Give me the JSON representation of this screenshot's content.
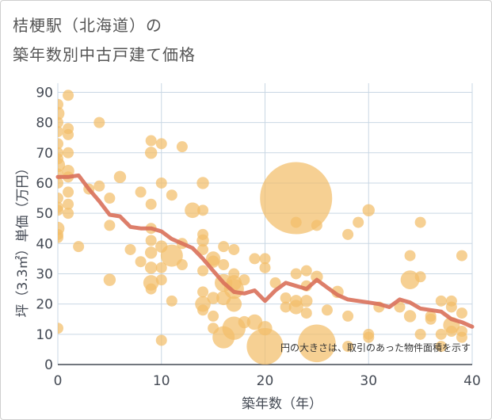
{
  "chart_data": {
    "type": "scatter",
    "title_lines": [
      "桔梗駅（北海道）の",
      "築年数別中古戸建て価格"
    ],
    "xlabel": "築年数（年）",
    "ylabel": "坪（3.3㎡）単価（万円）",
    "xlim": [
      0,
      40
    ],
    "ylim": [
      0,
      93
    ],
    "x_ticks": [
      "0",
      "10",
      "20",
      "30",
      "40"
    ],
    "y_ticks": [
      "0",
      "10",
      "20",
      "30",
      "40",
      "50",
      "60",
      "70",
      "80",
      "90"
    ],
    "grid": true,
    "bubble_color": "#f3be6a",
    "line_color": "#d9705a",
    "note": "円の大きさは、取引のあった物件面積を示す",
    "points": [
      {
        "x": 0,
        "y": 12,
        "s": 1
      },
      {
        "x": 0,
        "y": 42,
        "s": 1
      },
      {
        "x": 0,
        "y": 43,
        "s": 1
      },
      {
        "x": 0,
        "y": 45,
        "s": 1.2
      },
      {
        "x": 0,
        "y": 51,
        "s": 1
      },
      {
        "x": 0,
        "y": 52,
        "s": 1
      },
      {
        "x": 0,
        "y": 55,
        "s": 1
      },
      {
        "x": 0,
        "y": 60,
        "s": 1
      },
      {
        "x": 0,
        "y": 63,
        "s": 1
      },
      {
        "x": 0,
        "y": 66,
        "s": 1.3
      },
      {
        "x": 0,
        "y": 68,
        "s": 1
      },
      {
        "x": 0,
        "y": 70,
        "s": 1
      },
      {
        "x": 0,
        "y": 73,
        "s": 1
      },
      {
        "x": 0,
        "y": 77,
        "s": 1
      },
      {
        "x": 0,
        "y": 80,
        "s": 1
      },
      {
        "x": 0,
        "y": 83,
        "s": 1.2
      },
      {
        "x": 0,
        "y": 86,
        "s": 1
      },
      {
        "x": 1,
        "y": 89,
        "s": 1
      },
      {
        "x": 1,
        "y": 78,
        "s": 1
      },
      {
        "x": 1,
        "y": 76,
        "s": 1
      },
      {
        "x": 1,
        "y": 70,
        "s": 1
      },
      {
        "x": 1,
        "y": 64,
        "s": 1.1
      },
      {
        "x": 1,
        "y": 62,
        "s": 1
      },
      {
        "x": 1,
        "y": 57,
        "s": 1
      },
      {
        "x": 1,
        "y": 53,
        "s": 1
      },
      {
        "x": 1,
        "y": 50,
        "s": 1
      },
      {
        "x": 2,
        "y": 39,
        "s": 1
      },
      {
        "x": 3,
        "y": 58,
        "s": 1
      },
      {
        "x": 4,
        "y": 80,
        "s": 1
      },
      {
        "x": 4,
        "y": 59,
        "s": 1
      },
      {
        "x": 5,
        "y": 55,
        "s": 1
      },
      {
        "x": 5,
        "y": 46,
        "s": 1
      },
      {
        "x": 5,
        "y": 28,
        "s": 1.1
      },
      {
        "x": 6,
        "y": 62,
        "s": 1.1
      },
      {
        "x": 7,
        "y": 38,
        "s": 1
      },
      {
        "x": 8,
        "y": 57,
        "s": 1
      },
      {
        "x": 8,
        "y": 34,
        "s": 1
      },
      {
        "x": 9,
        "y": 74,
        "s": 1
      },
      {
        "x": 9,
        "y": 70,
        "s": 1.1
      },
      {
        "x": 9,
        "y": 53,
        "s": 1
      },
      {
        "x": 9,
        "y": 45,
        "s": 1
      },
      {
        "x": 9,
        "y": 41,
        "s": 1
      },
      {
        "x": 9,
        "y": 37,
        "s": 1.1
      },
      {
        "x": 9,
        "y": 32,
        "s": 1.1
      },
      {
        "x": 9,
        "y": 27,
        "s": 1.4
      },
      {
        "x": 9,
        "y": 25,
        "s": 1
      },
      {
        "x": 10,
        "y": 73,
        "s": 1
      },
      {
        "x": 10,
        "y": 60,
        "s": 1
      },
      {
        "x": 10,
        "y": 39,
        "s": 1.1
      },
      {
        "x": 10,
        "y": 32,
        "s": 1
      },
      {
        "x": 10,
        "y": 28,
        "s": 1
      },
      {
        "x": 10,
        "y": 8,
        "s": 1
      },
      {
        "x": 11,
        "y": 56,
        "s": 1
      },
      {
        "x": 11,
        "y": 36,
        "s": 2
      },
      {
        "x": 11,
        "y": 21,
        "s": 1
      },
      {
        "x": 12,
        "y": 72,
        "s": 1
      },
      {
        "x": 12,
        "y": 40,
        "s": 1
      },
      {
        "x": 12,
        "y": 33,
        "s": 1
      },
      {
        "x": 13,
        "y": 51,
        "s": 1.4
      },
      {
        "x": 14,
        "y": 60,
        "s": 1.1
      },
      {
        "x": 14,
        "y": 51,
        "s": 1
      },
      {
        "x": 14,
        "y": 43,
        "s": 1
      },
      {
        "x": 14,
        "y": 41,
        "s": 1.1
      },
      {
        "x": 14,
        "y": 38,
        "s": 1
      },
      {
        "x": 14,
        "y": 31,
        "s": 1
      },
      {
        "x": 14,
        "y": 24,
        "s": 1
      },
      {
        "x": 14,
        "y": 20,
        "s": 1.4
      },
      {
        "x": 14,
        "y": 18,
        "s": 1
      },
      {
        "x": 15,
        "y": 35,
        "s": 1.3
      },
      {
        "x": 15,
        "y": 34,
        "s": 1.1
      },
      {
        "x": 15,
        "y": 22,
        "s": 1.1
      },
      {
        "x": 15,
        "y": 16,
        "s": 1
      },
      {
        "x": 15,
        "y": 12,
        "s": 1
      },
      {
        "x": 16,
        "y": 39,
        "s": 1
      },
      {
        "x": 16,
        "y": 33,
        "s": 1
      },
      {
        "x": 16,
        "y": 27,
        "s": 1.6
      },
      {
        "x": 16,
        "y": 22,
        "s": 1.3
      },
      {
        "x": 16,
        "y": 9,
        "s": 2
      },
      {
        "x": 17,
        "y": 38,
        "s": 1
      },
      {
        "x": 17,
        "y": 30,
        "s": 1
      },
      {
        "x": 17,
        "y": 27,
        "s": 1.4
      },
      {
        "x": 17,
        "y": 25,
        "s": 1.8
      },
      {
        "x": 17,
        "y": 20,
        "s": 1.4
      },
      {
        "x": 17,
        "y": 12,
        "s": 2.1
      },
      {
        "x": 18,
        "y": 28,
        "s": 1
      },
      {
        "x": 18,
        "y": 14,
        "s": 1.1
      },
      {
        "x": 19,
        "y": 14,
        "s": 1.4
      },
      {
        "x": 19,
        "y": 35,
        "s": 1
      },
      {
        "x": 20,
        "y": 35,
        "s": 1
      },
      {
        "x": 20,
        "y": 32,
        "s": 1
      },
      {
        "x": 20,
        "y": 12,
        "s": 1.3
      },
      {
        "x": 20,
        "y": 6,
        "s": 3.3
      },
      {
        "x": 21,
        "y": 27,
        "s": 1
      },
      {
        "x": 22,
        "y": 22,
        "s": 1
      },
      {
        "x": 22,
        "y": 19,
        "s": 1
      },
      {
        "x": 23,
        "y": 55,
        "s": 6.5
      },
      {
        "x": 23,
        "y": 47,
        "s": 1
      },
      {
        "x": 23,
        "y": 30,
        "s": 1
      },
      {
        "x": 23,
        "y": 21,
        "s": 1.1
      },
      {
        "x": 23,
        "y": 19,
        "s": 1.3
      },
      {
        "x": 24,
        "y": 31,
        "s": 1
      },
      {
        "x": 24,
        "y": 26,
        "s": 1
      },
      {
        "x": 24,
        "y": 21,
        "s": 1.1
      },
      {
        "x": 24,
        "y": 17,
        "s": 1
      },
      {
        "x": 25,
        "y": 46,
        "s": 1
      },
      {
        "x": 25,
        "y": 29,
        "s": 1.1
      },
      {
        "x": 25,
        "y": 7,
        "s": 3.4
      },
      {
        "x": 26,
        "y": 18,
        "s": 1
      },
      {
        "x": 27,
        "y": 24,
        "s": 1.1
      },
      {
        "x": 28,
        "y": 43,
        "s": 1
      },
      {
        "x": 28,
        "y": 16,
        "s": 1
      },
      {
        "x": 28,
        "y": 6,
        "s": 1
      },
      {
        "x": 29,
        "y": 47,
        "s": 1
      },
      {
        "x": 30,
        "y": 51,
        "s": 1.1
      },
      {
        "x": 30,
        "y": 10,
        "s": 1
      },
      {
        "x": 30,
        "y": 9,
        "s": 1
      },
      {
        "x": 31,
        "y": 19,
        "s": 1
      },
      {
        "x": 33,
        "y": 19,
        "s": 1
      },
      {
        "x": 34,
        "y": 36,
        "s": 1
      },
      {
        "x": 34,
        "y": 28,
        "s": 1.7
      },
      {
        "x": 34,
        "y": 16,
        "s": 1.1
      },
      {
        "x": 35,
        "y": 47,
        "s": 1
      },
      {
        "x": 35,
        "y": 29,
        "s": 1
      },
      {
        "x": 35,
        "y": 10,
        "s": 1
      },
      {
        "x": 36,
        "y": 16,
        "s": 1
      },
      {
        "x": 36,
        "y": 15,
        "s": 1
      },
      {
        "x": 37,
        "y": 21,
        "s": 1
      },
      {
        "x": 37,
        "y": 10,
        "s": 1
      },
      {
        "x": 37,
        "y": 6,
        "s": 1
      },
      {
        "x": 38,
        "y": 21,
        "s": 1
      },
      {
        "x": 38,
        "y": 19,
        "s": 1
      },
      {
        "x": 38,
        "y": 13,
        "s": 1.5
      },
      {
        "x": 38,
        "y": 11,
        "s": 1
      },
      {
        "x": 39,
        "y": 36,
        "s": 1
      },
      {
        "x": 39,
        "y": 17,
        "s": 1
      },
      {
        "x": 39,
        "y": 11,
        "s": 1
      },
      {
        "x": 39,
        "y": 9,
        "s": 1
      }
    ],
    "trend": [
      {
        "x": 0,
        "y": 62
      },
      {
        "x": 1,
        "y": 62
      },
      {
        "x": 2,
        "y": 62.5
      },
      {
        "x": 3,
        "y": 58
      },
      {
        "x": 4,
        "y": 54
      },
      {
        "x": 5,
        "y": 49.5
      },
      {
        "x": 6,
        "y": 49
      },
      {
        "x": 7,
        "y": 45.5
      },
      {
        "x": 8,
        "y": 45
      },
      {
        "x": 9,
        "y": 45
      },
      {
        "x": 10,
        "y": 44
      },
      {
        "x": 11,
        "y": 41.5
      },
      {
        "x": 12,
        "y": 40
      },
      {
        "x": 13,
        "y": 38.5
      },
      {
        "x": 14,
        "y": 35
      },
      {
        "x": 15,
        "y": 31
      },
      {
        "x": 16,
        "y": 27
      },
      {
        "x": 17,
        "y": 24
      },
      {
        "x": 18,
        "y": 23.5
      },
      {
        "x": 19,
        "y": 24.5
      },
      {
        "x": 20,
        "y": 21
      },
      {
        "x": 21,
        "y": 24.5
      },
      {
        "x": 22,
        "y": 27
      },
      {
        "x": 23,
        "y": 26
      },
      {
        "x": 24,
        "y": 25
      },
      {
        "x": 25,
        "y": 28
      },
      {
        "x": 26,
        "y": 25.5
      },
      {
        "x": 27,
        "y": 23
      },
      {
        "x": 28,
        "y": 21.5
      },
      {
        "x": 29,
        "y": 21
      },
      {
        "x": 30,
        "y": 20.5
      },
      {
        "x": 31,
        "y": 20
      },
      {
        "x": 32,
        "y": 19
      },
      {
        "x": 33,
        "y": 21.5
      },
      {
        "x": 34,
        "y": 20.5
      },
      {
        "x": 35,
        "y": 18.5
      },
      {
        "x": 36,
        "y": 18
      },
      {
        "x": 37,
        "y": 17.5
      },
      {
        "x": 38,
        "y": 15
      },
      {
        "x": 39,
        "y": 14
      },
      {
        "x": 40,
        "y": 12.5
      }
    ]
  }
}
